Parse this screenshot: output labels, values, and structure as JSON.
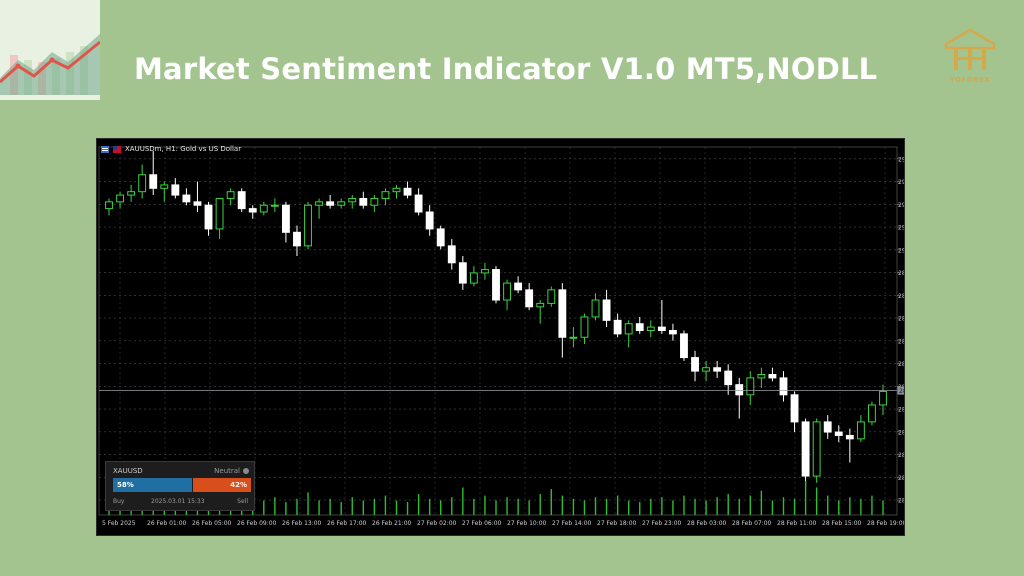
{
  "banner": {
    "title": "Market Sentiment Indicator V1.0 MT5,NODLL",
    "brand_name": "YOFOREX",
    "colors": {
      "background": "#a3c48f",
      "title": "#ffffff",
      "brand": "#d6a84a"
    }
  },
  "chart_header": {
    "title": "XAUUSDm, H1:  Gold vs US Dollar"
  },
  "chart_data": {
    "type": "candlestick",
    "symbol": "XAUUSDm",
    "timeframe": "H1",
    "y_ticks": [
      "2927.710",
      "2920.990",
      "2914.270",
      "2907.550",
      "2900.830",
      "2894.110",
      "2887.390",
      "2880.670",
      "2873.950",
      "2867.230",
      "2860.510",
      "2853.790",
      "2847.070",
      "2840.350",
      "2833.630",
      "2826.910"
    ],
    "ylim": [
      2822.5,
      2931.2
    ],
    "current_price": "2859.242",
    "current_price_value": 2859.242,
    "x_ticks": [
      "5 Feb 2025",
      "26 Feb 01:00",
      "26 Feb 05:00",
      "26 Feb 09:00",
      "26 Feb 13:00",
      "26 Feb 17:00",
      "26 Feb 21:00",
      "27 Feb 02:00",
      "27 Feb 06:00",
      "27 Feb 10:00",
      "27 Feb 14:00",
      "27 Feb 18:00",
      "27 Feb 23:00",
      "28 Feb 03:00",
      "28 Feb 07:00",
      "28 Feb 11:00",
      "28 Feb 15:00",
      "28 Feb 19:00"
    ],
    "candles": [
      [
        2913,
        2916,
        2911,
        2915
      ],
      [
        2915,
        2918,
        2913,
        2917
      ],
      [
        2917,
        2920,
        2915,
        2918
      ],
      [
        2918,
        2926,
        2916,
        2923
      ],
      [
        2923,
        2930,
        2917,
        2919
      ],
      [
        2919,
        2921,
        2915,
        2920
      ],
      [
        2920,
        2922,
        2916,
        2917
      ],
      [
        2917,
        2919,
        2914,
        2915
      ],
      [
        2915,
        2921,
        2912,
        2914
      ],
      [
        2914,
        2915,
        2905,
        2907
      ],
      [
        2907,
        2916,
        2904,
        2916
      ],
      [
        2916,
        2919,
        2914,
        2918
      ],
      [
        2918,
        2919,
        2912,
        2913
      ],
      [
        2913,
        2914,
        2910,
        2912
      ],
      [
        2912,
        2915,
        2911,
        2914
      ],
      [
        2914,
        2916,
        2912,
        2914
      ],
      [
        2914,
        2915,
        2903,
        2906
      ],
      [
        2906,
        2908,
        2899,
        2902
      ],
      [
        2902,
        2915,
        2901,
        2914
      ],
      [
        2914,
        2916,
        2910,
        2915
      ],
      [
        2915,
        2917,
        2913,
        2914
      ],
      [
        2914,
        2916,
        2913,
        2915
      ],
      [
        2915,
        2917,
        2913,
        2916
      ],
      [
        2916,
        2918,
        2913,
        2914
      ],
      [
        2914,
        2917,
        2912,
        2916
      ],
      [
        2916,
        2919,
        2914,
        2918
      ],
      [
        2918,
        2920,
        2916,
        2919
      ],
      [
        2919,
        2921,
        2916,
        2917
      ],
      [
        2917,
        2919,
        2911,
        2912
      ],
      [
        2912,
        2914,
        2905,
        2907
      ],
      [
        2907,
        2908,
        2901,
        2902
      ],
      [
        2902,
        2904,
        2895,
        2897
      ],
      [
        2897,
        2899,
        2889,
        2891
      ],
      [
        2891,
        2896,
        2890,
        2894
      ],
      [
        2894,
        2897,
        2892,
        2895
      ],
      [
        2895,
        2896,
        2885,
        2886
      ],
      [
        2886,
        2892,
        2883,
        2891
      ],
      [
        2891,
        2893,
        2888,
        2889
      ],
      [
        2889,
        2891,
        2883,
        2884
      ],
      [
        2884,
        2886,
        2879,
        2885
      ],
      [
        2885,
        2890,
        2884,
        2889
      ],
      [
        2889,
        2891,
        2869,
        2875
      ],
      [
        2875,
        2878,
        2872,
        2875
      ],
      [
        2875,
        2882,
        2873,
        2881
      ],
      [
        2881,
        2888,
        2880,
        2886
      ],
      [
        2886,
        2889,
        2878,
        2880
      ],
      [
        2880,
        2882,
        2875,
        2876
      ],
      [
        2876,
        2880,
        2872,
        2879
      ],
      [
        2879,
        2881,
        2876,
        2877
      ],
      [
        2877,
        2880,
        2875,
        2878
      ],
      [
        2878,
        2886,
        2876,
        2877
      ],
      [
        2877,
        2879,
        2874,
        2876
      ],
      [
        2876,
        2877,
        2868,
        2869
      ],
      [
        2869,
        2871,
        2862,
        2865
      ],
      [
        2865,
        2868,
        2862,
        2866
      ],
      [
        2866,
        2868,
        2863,
        2865
      ],
      [
        2865,
        2867,
        2858,
        2861
      ],
      [
        2861,
        2863,
        2851,
        2858
      ],
      [
        2858,
        2865,
        2855,
        2863
      ],
      [
        2863,
        2866,
        2860,
        2864
      ],
      [
        2864,
        2866,
        2862,
        2863
      ],
      [
        2863,
        2865,
        2856,
        2858
      ],
      [
        2858,
        2859,
        2847,
        2850
      ],
      [
        2850,
        2851,
        2831,
        2834
      ],
      [
        2834,
        2851,
        2832,
        2850
      ],
      [
        2850,
        2852,
        2845,
        2847
      ],
      [
        2847,
        2849,
        2844,
        2846
      ],
      [
        2846,
        2848,
        2838,
        2845
      ],
      [
        2845,
        2852,
        2844,
        2850
      ],
      [
        2850,
        2856,
        2849,
        2855
      ],
      [
        2855,
        2861,
        2852,
        2859
      ]
    ],
    "volumes": [
      9,
      10,
      8,
      9,
      12,
      9,
      11,
      8,
      10,
      13,
      9,
      8,
      12,
      10,
      9,
      11,
      8,
      10,
      14,
      9,
      10,
      8,
      11,
      9,
      10,
      12,
      9,
      8,
      13,
      10,
      9,
      11,
      17,
      10,
      12,
      9,
      11,
      10,
      9,
      13,
      16,
      12,
      10,
      9,
      11,
      10,
      12,
      9,
      8,
      10,
      11,
      9,
      12,
      10,
      9,
      11,
      13,
      10,
      12,
      15,
      9,
      11,
      10,
      21,
      17,
      12,
      9,
      11,
      10,
      12,
      9
    ]
  },
  "sentiment_widget": {
    "symbol": "XAUUSD",
    "status": "Neutral",
    "buy_percent_label": "58%",
    "sell_percent_label": "42%",
    "buy_fraction": 0.58,
    "sell_fraction": 0.42,
    "timestamp": "2025.03.01 15:33",
    "buy_label": "Buy",
    "sell_label": "Sell",
    "colors": {
      "buy": "#1f6fa3",
      "sell": "#d94f1c"
    }
  }
}
